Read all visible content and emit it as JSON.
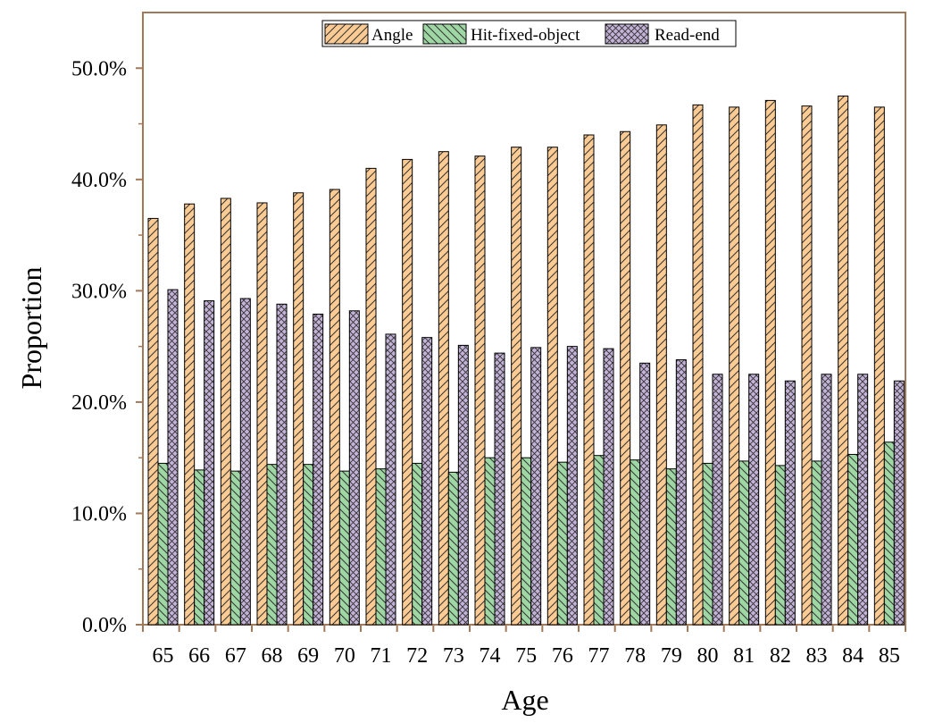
{
  "chart_data": {
    "type": "bar",
    "title": "",
    "xlabel": "Age",
    "ylabel": "Proportion",
    "ylim": [
      0,
      55
    ],
    "yticks": [
      0,
      10,
      20,
      30,
      40,
      50
    ],
    "ytick_labels": [
      "0.0%",
      "10.0%",
      "20.0%",
      "30.0%",
      "40.0%",
      "50.0%"
    ],
    "grid": false,
    "legend_position": "top-center",
    "categories": [
      "65",
      "66",
      "67",
      "68",
      "69",
      "70",
      "71",
      "72",
      "73",
      "74",
      "75",
      "76",
      "77",
      "78",
      "79",
      "80",
      "81",
      "82",
      "83",
      "84",
      "85"
    ],
    "series": [
      {
        "name": "Angle",
        "color": "#fbcb93",
        "hatch": "diagonal",
        "values": [
          36.5,
          37.8,
          38.3,
          37.9,
          38.8,
          39.1,
          41.0,
          41.8,
          42.5,
          42.1,
          42.9,
          42.9,
          44.0,
          44.3,
          44.9,
          46.7,
          46.5,
          47.1,
          46.6,
          47.5,
          46.5
        ]
      },
      {
        "name": "Hit-fixed-object",
        "color": "#9fd7a4",
        "hatch": "back-diagonal",
        "values": [
          14.5,
          13.9,
          13.8,
          14.4,
          14.4,
          13.8,
          14.0,
          14.5,
          13.7,
          15.0,
          15.0,
          14.6,
          15.2,
          14.8,
          14.0,
          14.5,
          14.7,
          14.3,
          14.7,
          15.3,
          16.4
        ]
      },
      {
        "name": "Read-end",
        "color": "#c4b3d9",
        "hatch": "cross",
        "values": [
          30.1,
          29.1,
          29.3,
          28.8,
          27.9,
          28.2,
          26.1,
          25.8,
          25.1,
          24.4,
          24.9,
          25.0,
          24.8,
          23.5,
          23.8,
          22.5,
          22.5,
          21.9,
          22.5,
          22.5,
          21.9
        ]
      }
    ]
  }
}
